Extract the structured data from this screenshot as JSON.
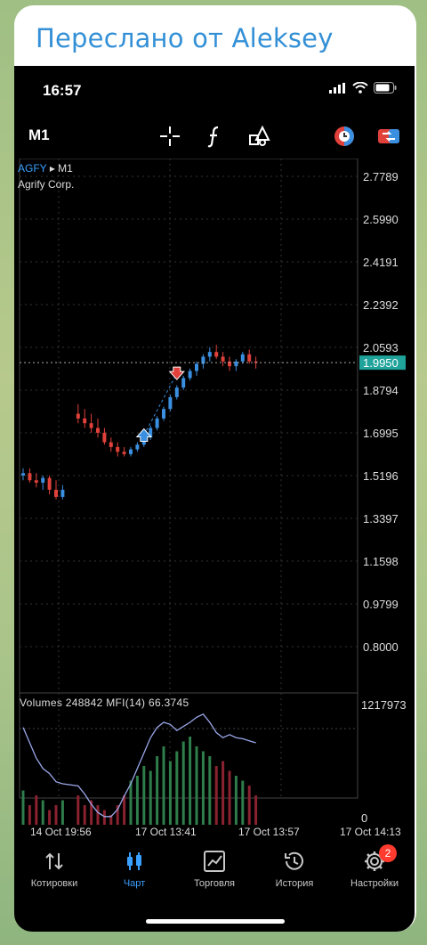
{
  "forwarded": {
    "text": "Переслано от Aleksey"
  },
  "status": {
    "time": "16:57"
  },
  "toolbar": {
    "timeframe": "M1",
    "icons": [
      "crosshair-icon",
      "function-icon",
      "objects-icon",
      "timeframe-clock-icon",
      "trade-toggle-icon"
    ]
  },
  "chart": {
    "symbol": "AGFY",
    "symbol_timeframe": "M1",
    "company": "Agrify Corp.",
    "indicator_label": "Volumes 248842 MFI(14) 66.3745",
    "current_price": "1.9950",
    "colors": {
      "bull": "#3b8fe0",
      "bear": "#e0413b",
      "price_tag": "#1fa39a",
      "line": "#9aa7e8"
    }
  },
  "chart_data": {
    "type": "candlestick",
    "price_axis_ticks": [
      "2.7789",
      "2.5990",
      "2.4191",
      "2.2392",
      "2.0593",
      "1.8794",
      "1.6995",
      "1.5196",
      "1.3397",
      "1.1598",
      "0.9799",
      "0.8000"
    ],
    "volume_axis_ticks": [
      "1217973",
      "0"
    ],
    "time_labels": [
      "14 Oct 19:56",
      "17 Oct 13:41",
      "17 Oct 13:57",
      "17 Oct 14:13"
    ],
    "ylim": [
      0.8,
      2.7789
    ],
    "current_price": 1.995,
    "candles": [
      [
        1.52,
        1.55,
        1.5,
        1.53
      ],
      [
        1.53,
        1.55,
        1.49,
        1.5
      ],
      [
        1.5,
        1.53,
        1.47,
        1.49
      ],
      [
        1.49,
        1.52,
        1.46,
        1.51
      ],
      [
        1.51,
        1.52,
        1.44,
        1.46
      ],
      [
        1.46,
        1.5,
        1.42,
        1.43
      ],
      [
        1.43,
        1.48,
        1.42,
        1.46
      ],
      [
        1.78,
        1.82,
        1.74,
        1.76
      ],
      [
        1.76,
        1.8,
        1.72,
        1.74
      ],
      [
        1.74,
        1.78,
        1.7,
        1.72
      ],
      [
        1.72,
        1.76,
        1.68,
        1.7
      ],
      [
        1.7,
        1.72,
        1.65,
        1.66
      ],
      [
        1.66,
        1.68,
        1.62,
        1.64
      ],
      [
        1.64,
        1.66,
        1.6,
        1.62
      ],
      [
        1.62,
        1.64,
        1.6,
        1.61
      ],
      [
        1.61,
        1.64,
        1.6,
        1.63
      ],
      [
        1.63,
        1.66,
        1.62,
        1.65
      ],
      [
        1.65,
        1.69,
        1.64,
        1.68
      ],
      [
        1.68,
        1.73,
        1.67,
        1.72
      ],
      [
        1.72,
        1.77,
        1.71,
        1.76
      ],
      [
        1.76,
        1.81,
        1.75,
        1.8
      ],
      [
        1.8,
        1.86,
        1.79,
        1.85
      ],
      [
        1.85,
        1.9,
        1.84,
        1.89
      ],
      [
        1.89,
        1.94,
        1.88,
        1.93
      ],
      [
        1.93,
        1.97,
        1.92,
        1.96
      ],
      [
        1.96,
        2.0,
        1.94,
        1.99
      ],
      [
        1.99,
        2.03,
        1.97,
        2.02
      ],
      [
        2.02,
        2.06,
        2.0,
        2.04
      ],
      [
        2.04,
        2.07,
        2.01,
        2.02
      ],
      [
        2.02,
        2.04,
        1.98,
        2.0
      ],
      [
        2.0,
        2.02,
        1.96,
        1.98
      ],
      [
        1.98,
        2.01,
        1.96,
        2.0
      ],
      [
        2.0,
        2.04,
        1.99,
        2.03
      ],
      [
        2.03,
        2.05,
        1.99,
        2.0
      ],
      [
        2.0,
        2.02,
        1.97,
        1.995
      ]
    ],
    "mfi": [
      95,
      80,
      65,
      55,
      50,
      42,
      40,
      38,
      30,
      20,
      12,
      8,
      8,
      15,
      28,
      40,
      55,
      70,
      85,
      95,
      100,
      98,
      92,
      96,
      100,
      105,
      108,
      100,
      90,
      85,
      88,
      85,
      84,
      82,
      80
    ],
    "volumes": [
      0.35,
      0.2,
      0.3,
      0.25,
      0.15,
      0.2,
      0.25,
      0.3,
      0.2,
      0.25,
      0.2,
      0.15,
      0.1,
      0.2,
      0.3,
      0.45,
      0.5,
      0.6,
      0.55,
      0.7,
      0.8,
      0.65,
      0.75,
      0.85,
      0.9,
      0.8,
      0.75,
      0.7,
      0.6,
      0.65,
      0.55,
      0.5,
      0.45,
      0.4,
      0.3
    ],
    "markers": [
      {
        "type": "buy",
        "x_index": 17,
        "price": 1.69
      },
      {
        "type": "sell",
        "x_index": 22,
        "price": 1.95
      }
    ]
  },
  "nav": {
    "items": [
      {
        "label": "Котировки",
        "icon": "quotes-arrows-icon"
      },
      {
        "label": "Чарт",
        "icon": "candles-icon",
        "active": true
      },
      {
        "label": "Торговля",
        "icon": "trade-chart-icon"
      },
      {
        "label": "История",
        "icon": "history-clock-icon"
      },
      {
        "label": "Настройки",
        "icon": "settings-gear-icon",
        "badge": "2"
      }
    ]
  }
}
